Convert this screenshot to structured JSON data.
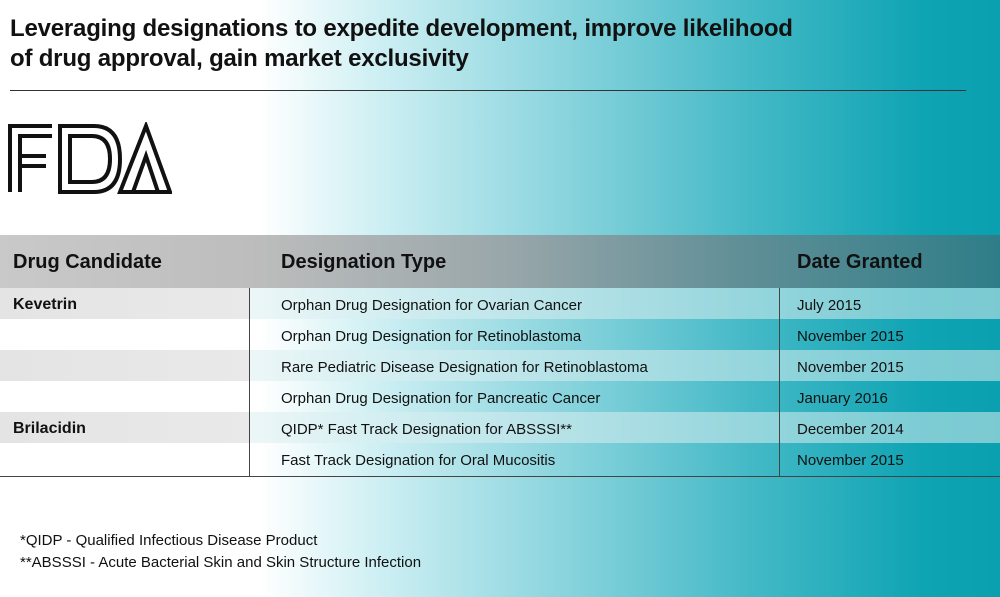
{
  "title": {
    "line1": "Leveraging designations to expedite development, improve likelihood",
    "line2": "of drug approval, gain market exclusivity"
  },
  "logo": {
    "text": "FDA",
    "icon": "fda-logo"
  },
  "table": {
    "headers": [
      "Drug Candidate",
      "Designation Type",
      "Date Granted"
    ],
    "rows": [
      {
        "drug": "Kevetrin",
        "designation": "Orphan Drug Designation for Ovarian Cancer",
        "date": "July 2015"
      },
      {
        "drug": "",
        "designation": "Orphan Drug Designation for Retinoblastoma",
        "date": "November 2015"
      },
      {
        "drug": "",
        "designation": "Rare Pediatric Disease Designation for Retinoblastoma",
        "date": "November 2015"
      },
      {
        "drug": "",
        "designation": "Orphan Drug Designation for Pancreatic Cancer",
        "date": "January 2016"
      },
      {
        "drug": "Brilacidin",
        "designation": "QIDP* Fast Track Designation for ABSSSI**",
        "date": "December 2014"
      },
      {
        "drug": "",
        "designation": "Fast Track Designation for Oral Mucositis",
        "date": "November 2015"
      }
    ]
  },
  "footnotes": [
    "*QIDP - Qualified Infectious Disease Product",
    "**ABSSSI - Acute Bacterial Skin and Skin Structure Infection"
  ]
}
